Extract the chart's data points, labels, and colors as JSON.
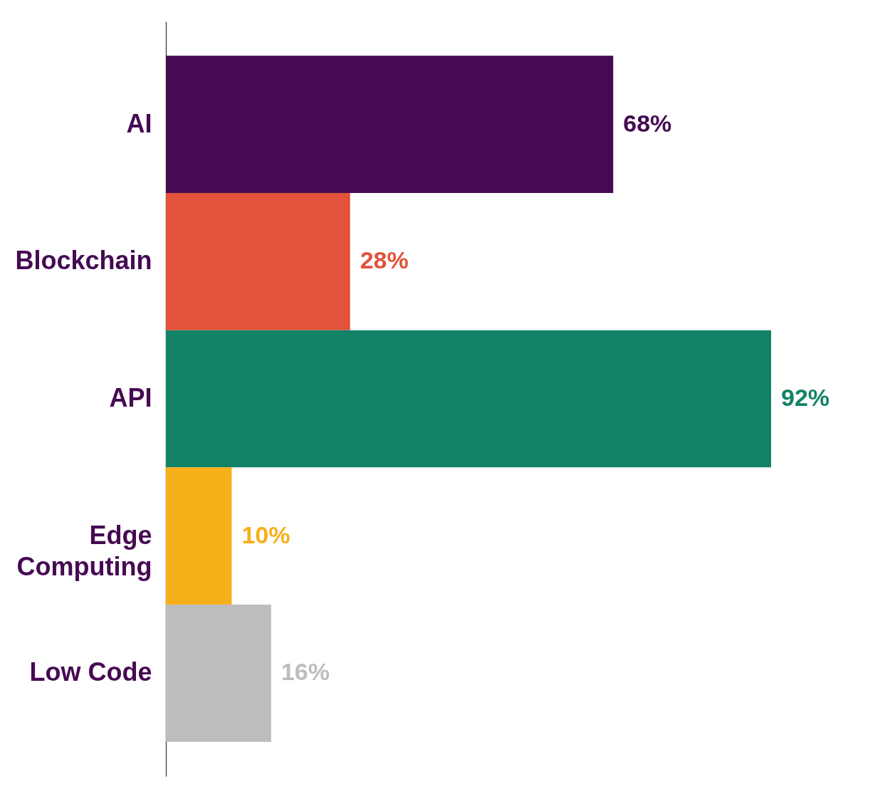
{
  "chart_data": {
    "type": "bar",
    "orientation": "horizontal",
    "categories": [
      "AI",
      "Blockchain",
      "API",
      "Edge Computing",
      "Low Code"
    ],
    "values": [
      68,
      28,
      92,
      10,
      16
    ],
    "colors": [
      "#460a53",
      "#e3523a",
      "#128267",
      "#f7af1a",
      "#bdbdc0"
    ],
    "data_labels": true,
    "value_labels": [
      "68%",
      "28%",
      "92%",
      "10%",
      "16%"
    ]
  }
}
